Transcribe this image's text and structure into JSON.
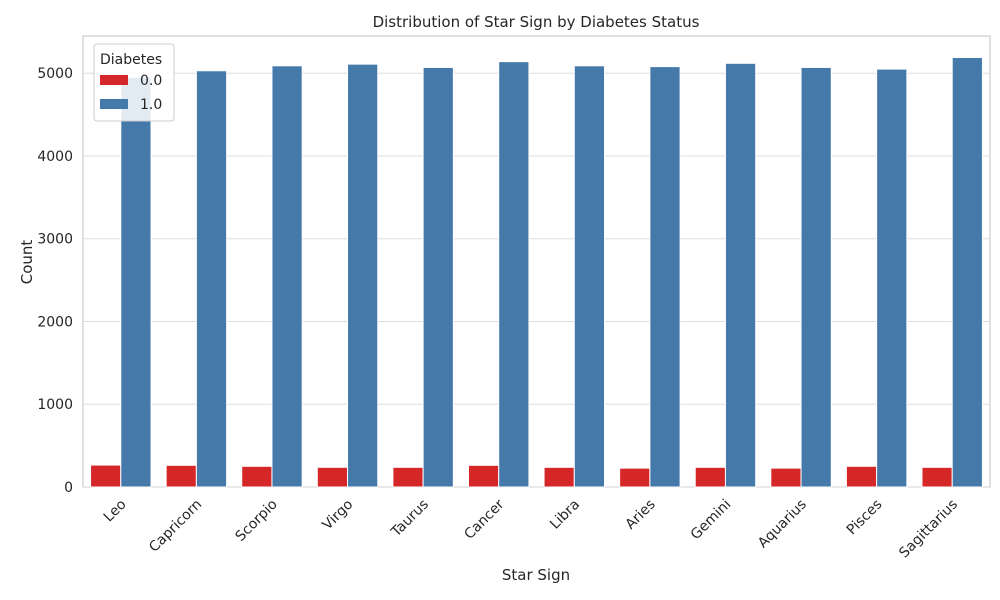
{
  "chart_data": {
    "type": "bar",
    "title": "Distribution of Star Sign by Diabetes Status",
    "xlabel": "Star Sign",
    "ylabel": "Count",
    "ylim": [
      0,
      5450
    ],
    "yticks": [
      0,
      1000,
      2000,
      3000,
      4000,
      5000
    ],
    "grid": "horizontal",
    "categories": [
      "Leo",
      "Capricorn",
      "Scorpio",
      "Virgo",
      "Taurus",
      "Cancer",
      "Libra",
      "Aries",
      "Gemini",
      "Aquarius",
      "Pisces",
      "Sagittarius"
    ],
    "legend": {
      "title": "Diabetes",
      "placement": "top-left"
    },
    "series": [
      {
        "name": "0.0",
        "color": "#d62728",
        "values": [
          265,
          262,
          250,
          238,
          238,
          262,
          238,
          228,
          238,
          228,
          250,
          238
        ]
      },
      {
        "name": "1.0",
        "color": "#4479aa",
        "values": [
          4950,
          5030,
          5090,
          5110,
          5070,
          5140,
          5090,
          5080,
          5120,
          5070,
          5050,
          5190
        ]
      }
    ]
  }
}
